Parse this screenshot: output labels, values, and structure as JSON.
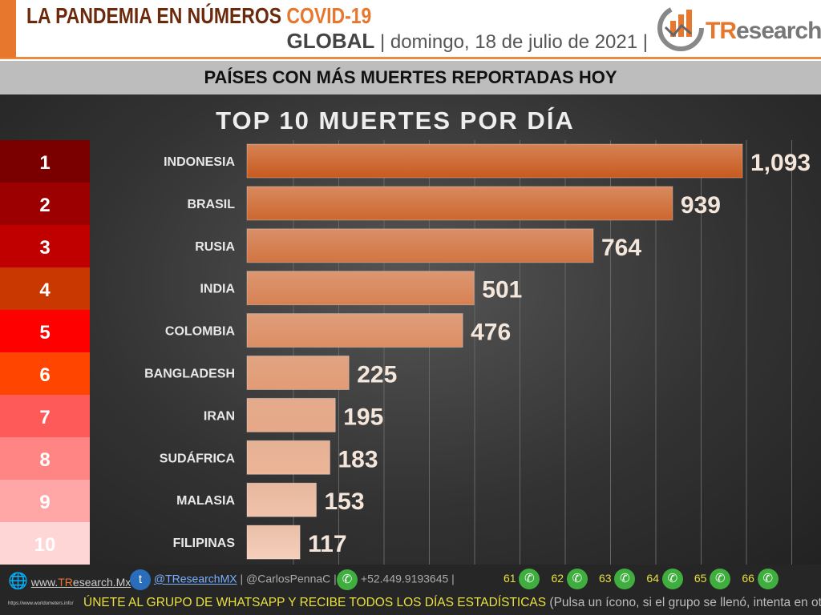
{
  "header": {
    "title_main": "LA PANDEMIA EN NÚMEROS",
    "title_accent": "COVID-19",
    "scope": "GLOBAL",
    "date": "| domingo, 18 de julio de 2021 |",
    "logo_prefix": "TR",
    "logo_suffix": "esearch"
  },
  "subtitle": "PAÍSES CON MÁS MUERTES REPORTADAS HOY",
  "chart_data": {
    "type": "bar",
    "orientation": "horizontal",
    "title": "TOP 10 MUERTES POR DÍA",
    "ranks": [
      "1",
      "2",
      "3",
      "4",
      "5",
      "6",
      "7",
      "8",
      "9",
      "10"
    ],
    "rank_colors": [
      "#7a0000",
      "#9c0000",
      "#c00000",
      "#c83800",
      "#ff0000",
      "#ff4500",
      "#ff5a5a",
      "#ff8585",
      "#ffa6a6",
      "#ffd6d6"
    ],
    "categories": [
      "INDONESIA",
      "BRASIL",
      "RUSIA",
      "INDIA",
      "COLOMBIA",
      "BANGLADESH",
      "IRAN",
      "SUDÁFRICA",
      "MALASIA",
      "FILIPINAS"
    ],
    "values": [
      1093,
      939,
      764,
      501,
      476,
      225,
      195,
      183,
      153,
      117
    ],
    "value_labels": [
      "1,093",
      "939",
      "764",
      "501",
      "476",
      "225",
      "195",
      "183",
      "153",
      "117"
    ],
    "grid": true,
    "bar_color_dark": "#c85a1e",
    "bar_color_light": "#f6cfbb"
  },
  "footer": {
    "web_prefix": "www.",
    "web_brand": "TR",
    "web_suffix": "esearch.Mx",
    "twitter": "@TResearchMX",
    "author": "| @CarlosPennaC |",
    "phone": "+52.449.9193645 |",
    "groups": [
      "61",
      "62",
      "63",
      "64",
      "65",
      "66"
    ],
    "source": "https://www.worldometers.info/",
    "cta": "ÚNETE AL GRUPO DE WHATSAPP Y RECIBE TODOS LOS DÍAS ESTADÍSTICAS",
    "cta_note": "(Pulsa un ícono, si el grupo se llenó, intenta en otro)"
  }
}
